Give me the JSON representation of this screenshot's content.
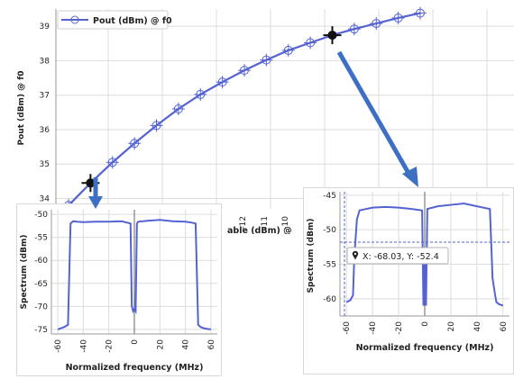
{
  "main_chart": {
    "ylabel": "Pout (dBm) @ f0",
    "xlabel_fragment": "able (dBm) @",
    "legend": "Pout (dBm) @ f0",
    "y_ticks": [
      "39",
      "38",
      "37",
      "36",
      "35",
      "34"
    ],
    "x_ticks_visible": [
      "-12",
      "-11",
      "-10"
    ],
    "colors": {
      "series": "#5563d1",
      "cursor": "#000000",
      "arrow": "#3d6fc4"
    }
  },
  "left_inset": {
    "ylabel": "Spectrum (dBm)",
    "xlabel": "Normalized frequency (MHz)",
    "y_ticks": [
      "-50",
      "-55",
      "-60",
      "-65",
      "-70",
      "-75"
    ],
    "x_ticks": [
      "-60",
      "-40",
      "-20",
      "0",
      "20",
      "40",
      "60"
    ]
  },
  "right_inset": {
    "ylabel": "Spectrum (dBm)",
    "xlabel": "Normalized frequency (MHz)",
    "y_ticks": [
      "-45",
      "-50",
      "-55",
      "-60"
    ],
    "x_ticks": [
      "-60",
      "-40",
      "-20",
      "0",
      "20",
      "40",
      "60"
    ],
    "tooltip": "X: -68.03, Y: -52.4"
  },
  "chart_data": [
    {
      "type": "line",
      "ylabel": "Pout (dBm) @ f0",
      "ylim": [
        33.7,
        39.5
      ],
      "series": [
        {
          "name": "Pout (dBm) @ f0",
          "y": [
            33.8,
            34.45,
            35.05,
            35.6,
            36.12,
            36.6,
            37.02,
            37.38,
            37.72,
            38.02,
            38.3,
            38.52,
            38.74,
            38.92,
            39.08,
            39.24,
            39.38
          ]
        }
      ],
      "cursor_indices": [
        1,
        12
      ],
      "grid": true,
      "legend_position": "top-left"
    },
    {
      "type": "line",
      "xlabel": "Normalized frequency (MHz)",
      "ylabel": "Spectrum (dBm)",
      "xlim": [
        -65,
        65
      ],
      "ylim": [
        -76,
        -49
      ],
      "x": [
        -60,
        -55,
        -52,
        -50,
        -48,
        -45,
        -40,
        -30,
        -20,
        -10,
        -3,
        -2,
        -1,
        0,
        1,
        2,
        3,
        10,
        20,
        30,
        40,
        45,
        48,
        50,
        52,
        55,
        60
      ],
      "y": [
        -75,
        -74.5,
        -74,
        -52,
        -51.5,
        -51.6,
        -51.7,
        -51.6,
        -51.6,
        -51.5,
        -52,
        -70,
        -71,
        -70.5,
        -71,
        -52,
        -51.6,
        -51.4,
        -51.2,
        -51.5,
        -51.6,
        -51.8,
        -52,
        -74,
        -74.5,
        -74.8,
        -75
      ]
    },
    {
      "type": "line",
      "xlabel": "Normalized frequency (MHz)",
      "ylabel": "Spectrum (dBm)",
      "xlim": [
        -65,
        65
      ],
      "ylim": [
        -62.5,
        -44.5
      ],
      "x": [
        -60,
        -57,
        -55,
        -54,
        -52,
        -50,
        -40,
        -30,
        -20,
        -10,
        -2,
        -1,
        0,
        1,
        2,
        10,
        20,
        30,
        40,
        50,
        52,
        54,
        55,
        57,
        60
      ],
      "y": [
        -60.5,
        -60.2,
        -59.5,
        -54,
        -48.5,
        -47.2,
        -46.8,
        -46.7,
        -46.8,
        -47,
        -47.2,
        -61,
        -55,
        -61,
        -47,
        -46.6,
        -46.4,
        -46.2,
        -46.6,
        -47,
        -57,
        -59.5,
        -60.5,
        -60.8,
        -61
      ]
    }
  ]
}
